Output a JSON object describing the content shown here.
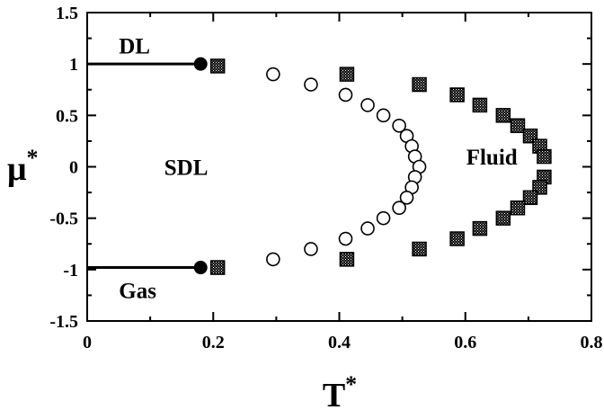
{
  "chart_data": {
    "type": "scatter",
    "xlabel": "T",
    "xlabel_sup": "*",
    "ylabel": "μ",
    "ylabel_sup": "*",
    "xlim": [
      0,
      0.8
    ],
    "ylim": [
      -1.5,
      1.5
    ],
    "xticks": [
      "0",
      "0.2",
      "0.4",
      "0.6",
      "0.8"
    ],
    "yticks": [
      "1.5",
      "1",
      "0.5",
      "0",
      "-0.5",
      "-1",
      "-1.5"
    ],
    "grid": false,
    "annotations": [
      {
        "text": "DL",
        "x": 0.075,
        "y": 1.18
      },
      {
        "text": "SDL",
        "x": 0.157,
        "y": 0.0
      },
      {
        "text": "Gas",
        "x": 0.08,
        "y": -1.2
      },
      {
        "text": "Fluid",
        "x": 0.642,
        "y": 0.1
      }
    ],
    "lines": [
      {
        "x": [
          0,
          0.18
        ],
        "y": [
          1,
          1
        ]
      },
      {
        "x": [
          0,
          0.18
        ],
        "y": [
          -0.98,
          -0.98
        ]
      }
    ],
    "series": [
      {
        "marker": "filled-circle",
        "x": [
          0.18,
          0.18
        ],
        "y": [
          1.0,
          -0.98
        ]
      },
      {
        "marker": "open-circle",
        "x": [
          0.295,
          0.355,
          0.41,
          0.445,
          0.47,
          0.495,
          0.507,
          0.515,
          0.52,
          0.527,
          0.52,
          0.515,
          0.507,
          0.495,
          0.47,
          0.445,
          0.41,
          0.355,
          0.295
        ],
        "y": [
          0.9,
          0.8,
          0.7,
          0.6,
          0.5,
          0.4,
          0.3,
          0.2,
          0.1,
          0.0,
          -0.1,
          -0.2,
          -0.3,
          -0.4,
          -0.5,
          -0.6,
          -0.7,
          -0.8,
          -0.9
        ]
      },
      {
        "marker": "hatched-square",
        "x": [
          0.207,
          0.412,
          0.527,
          0.587,
          0.623,
          0.66,
          0.683,
          0.703,
          0.718,
          0.725,
          0.725,
          0.718,
          0.703,
          0.683,
          0.66,
          0.623,
          0.587,
          0.527,
          0.412,
          0.207
        ],
        "y": [
          0.98,
          0.9,
          0.8,
          0.7,
          0.6,
          0.5,
          0.4,
          0.3,
          0.2,
          0.1,
          -0.1,
          -0.2,
          -0.3,
          -0.4,
          -0.5,
          -0.6,
          -0.7,
          -0.8,
          -0.9,
          -0.98
        ]
      }
    ]
  }
}
